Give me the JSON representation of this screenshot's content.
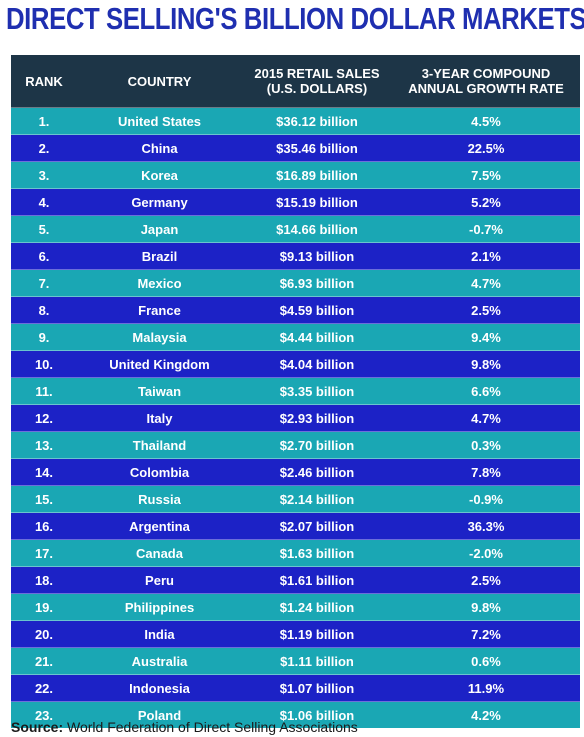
{
  "title": "DIRECT SELLING'S BILLION DOLLAR MARKETS",
  "colors": {
    "title": "#1f2fb0",
    "header_bg": "#1d3547",
    "row_teal": "#1aa7b4",
    "row_blue": "#1c22c6"
  },
  "chart_data": {
    "type": "table",
    "title": "DIRECT SELLING'S BILLION DOLLAR MARKETS",
    "columns": [
      "RANK",
      "COUNTRY",
      "2015 RETAIL SALES (U.S. DOLLARS)",
      "3-YEAR COMPOUND ANNUAL GROWTH RATE"
    ],
    "header": {
      "rank": "RANK",
      "country": "COUNTRY",
      "sales_line1": "2015 RETAIL SALES",
      "sales_line2": "(U.S. DOLLARS)",
      "growth_line1": "3-YEAR COMPOUND",
      "growth_line2": "ANNUAL GROWTH RATE"
    },
    "rows": [
      [
        "1.",
        "United States",
        "$36.12 billion",
        "4.5%"
      ],
      [
        "2.",
        "China",
        "$35.46 billion",
        "22.5%"
      ],
      [
        "3.",
        "Korea",
        "$16.89 billion",
        "7.5%"
      ],
      [
        "4.",
        "Germany",
        "$15.19 billion",
        "5.2%"
      ],
      [
        "5.",
        "Japan",
        "$14.66 billion",
        "-0.7%"
      ],
      [
        "6.",
        "Brazil",
        "$9.13 billion",
        "2.1%"
      ],
      [
        "7.",
        "Mexico",
        "$6.93 billion",
        "4.7%"
      ],
      [
        "8.",
        "France",
        "$4.59 billion",
        "2.5%"
      ],
      [
        "9.",
        "Malaysia",
        "$4.44 billion",
        "9.4%"
      ],
      [
        "10.",
        "United Kingdom",
        "$4.04 billion",
        "9.8%"
      ],
      [
        "11.",
        "Taiwan",
        "$3.35 billion",
        "6.6%"
      ],
      [
        "12.",
        "Italy",
        "$2.93 billion",
        "4.7%"
      ],
      [
        "13.",
        "Thailand",
        "$2.70 billion",
        "0.3%"
      ],
      [
        "14.",
        "Colombia",
        "$2.46 billion",
        "7.8%"
      ],
      [
        "15.",
        "Russia",
        "$2.14 billion",
        "-0.9%"
      ],
      [
        "16.",
        "Argentina",
        "$2.07 billion",
        "36.3%"
      ],
      [
        "17.",
        "Canada",
        "$1.63 billion",
        "-2.0%"
      ],
      [
        "18.",
        "Peru",
        "$1.61 billion",
        "2.5%"
      ],
      [
        "19.",
        "Philippines",
        "$1.24 billion",
        "9.8%"
      ],
      [
        "20.",
        "India",
        "$1.19 billion",
        "7.2%"
      ],
      [
        "21.",
        "Australia",
        "$1.11 billion",
        "0.6%"
      ],
      [
        "22.",
        "Indonesia",
        "$1.07 billion",
        "11.9%"
      ],
      [
        "23.",
        "Poland",
        "$1.06 billion",
        "4.2%"
      ]
    ]
  },
  "source": {
    "label": "Source:",
    "text": "World Federation of Direct Selling Associations"
  }
}
